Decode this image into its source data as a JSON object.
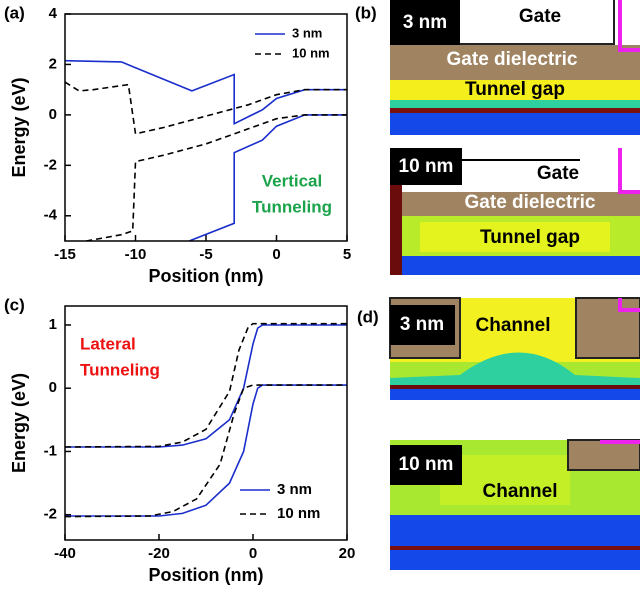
{
  "chart_data": [
    {
      "type": "line",
      "panel_label": "(a)",
      "x_label": "Position (nm)",
      "y_label": "Energy (eV)",
      "annotation": [
        "Vertical",
        "Tunneling"
      ],
      "annotation_color": "#1aa34a",
      "xlim": [
        -15,
        5
      ],
      "xticks": [
        -15,
        -10,
        -5,
        0,
        5
      ],
      "ylim": [
        -5,
        4
      ],
      "yticks": [
        -4,
        -2,
        0,
        2,
        4
      ],
      "legend": "upper right",
      "series": [
        {
          "name": "3 nm",
          "color": "#1a2ecc",
          "dashed": false,
          "x": [
            -15,
            -11,
            -6,
            -3,
            -3,
            -1,
            0,
            2,
            5,
            null,
            -6.2,
            -3,
            -3,
            -1,
            0,
            2,
            5
          ],
          "values": [
            2.15,
            2.1,
            0.95,
            1.6,
            -0.35,
            0.2,
            0.65,
            1.0,
            1.0,
            null,
            -5,
            -4.3,
            -1.5,
            -1.0,
            -0.45,
            0,
            0
          ]
        },
        {
          "name": "10 nm",
          "color": "#000000",
          "dashed": true,
          "x": [
            -15,
            -14,
            -13,
            -10.5,
            -10,
            -8,
            -5,
            -2,
            0,
            2,
            5,
            null,
            -13.5,
            -11,
            -10.2,
            -10,
            -8,
            -5,
            -2,
            0,
            2,
            5
          ],
          "values": [
            1.3,
            0.95,
            1.0,
            1.2,
            -0.75,
            -0.5,
            -0.05,
            0.4,
            0.8,
            1.0,
            1.0,
            null,
            -5,
            -4.75,
            -4.6,
            -1.85,
            -1.6,
            -1.15,
            -0.55,
            -0.15,
            0,
            0
          ]
        }
      ]
    },
    {
      "type": "line",
      "panel_label": "(c)",
      "x_label": "Position (nm)",
      "y_label": "Energy (eV)",
      "annotation": [
        "Lateral",
        "Tunneling"
      ],
      "annotation_color": "#ee1111",
      "xlim": [
        -40,
        20
      ],
      "xticks": [
        -40,
        -20,
        0,
        20
      ],
      "ylim": [
        -2.4,
        1.3
      ],
      "yticks": [
        -2,
        -1,
        0,
        1
      ],
      "legend": "lower right",
      "series": [
        {
          "name": "3 nm",
          "color": "#1a2ecc",
          "dashed": false,
          "x": [
            -40,
            -20,
            -15,
            -10,
            -5,
            -2,
            0,
            1,
            2,
            20,
            null,
            -40,
            -20,
            -15,
            -10,
            -5,
            -2,
            0,
            1,
            2,
            20
          ],
          "values": [
            -0.93,
            -0.93,
            -0.9,
            -0.8,
            -0.5,
            0,
            0.7,
            0.95,
            1.0,
            1.0,
            null,
            -2.02,
            -2.02,
            -1.98,
            -1.85,
            -1.5,
            -1.0,
            -0.25,
            0,
            0.05,
            0.05
          ]
        },
        {
          "name": "10 nm",
          "color": "#000000",
          "dashed": true,
          "x": [
            -40,
            -20,
            -15,
            -10,
            -5,
            -3,
            -1,
            0,
            20,
            null,
            -40,
            -22,
            -17,
            -12,
            -7,
            -4,
            -2,
            0,
            20
          ],
          "values": [
            -0.93,
            -0.92,
            -0.85,
            -0.65,
            -0.05,
            0.6,
            0.97,
            1.02,
            1.02,
            null,
            -2.03,
            -2.02,
            -1.95,
            -1.75,
            -1.2,
            -0.4,
            0,
            0.05,
            0.05
          ]
        }
      ]
    }
  ],
  "panels": {
    "b": {
      "label": "(b)",
      "images": [
        {
          "thickness": "3 nm",
          "regions": [
            "Gate",
            "Gate dielectric",
            "Tunnel gap"
          ]
        },
        {
          "thickness": "10 nm",
          "regions": [
            "Gate",
            "Gate dielectric",
            "Tunnel gap"
          ]
        }
      ]
    },
    "d": {
      "label": "(d)",
      "images": [
        {
          "thickness": "3 nm",
          "regions": [
            "Channel"
          ]
        },
        {
          "thickness": "10 nm",
          "regions": [
            "Channel"
          ]
        }
      ]
    }
  }
}
